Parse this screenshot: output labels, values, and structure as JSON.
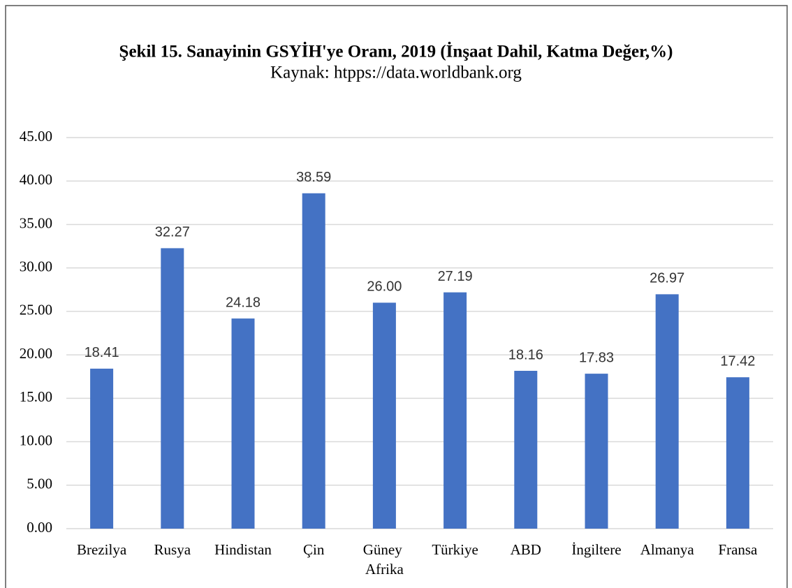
{
  "chart_data": {
    "type": "bar",
    "title": "Şekil 15. Sanayinin GSYİH'ye Oranı, 2019 (İnşaat Dahil, Katma Değer,%)",
    "subtitle": "Kaynak: htpps://data.worldbank.org",
    "categories": [
      "Brezilya",
      "Rusya",
      "Hindistan",
      "Çin",
      "Güney Afrika",
      "Türkiye",
      "ABD",
      "İngiltere",
      "Almanya",
      "Fransa"
    ],
    "values": [
      18.41,
      32.27,
      24.18,
      38.59,
      26.0,
      27.19,
      18.16,
      17.83,
      26.97,
      17.42
    ],
    "value_labels": [
      "18.41",
      "32.27",
      "24.18",
      "38.59",
      "26.00",
      "27.19",
      "18.16",
      "17.83",
      "26.97",
      "17.42"
    ],
    "color": "#4472c4",
    "ylim": [
      0,
      45
    ],
    "yticks": [
      {
        "value": 0,
        "label": "0.00"
      },
      {
        "value": 5,
        "label": "5.00"
      },
      {
        "value": 10,
        "label": "10.00"
      },
      {
        "value": 15,
        "label": "15.00"
      },
      {
        "value": 20,
        "label": "20.00"
      },
      {
        "value": 25,
        "label": "25.00"
      },
      {
        "value": 30,
        "label": "30.00"
      },
      {
        "value": 35,
        "label": "35.00"
      },
      {
        "value": 40,
        "label": "40.00"
      },
      {
        "value": 45,
        "label": "45.00"
      }
    ],
    "grid": true
  }
}
